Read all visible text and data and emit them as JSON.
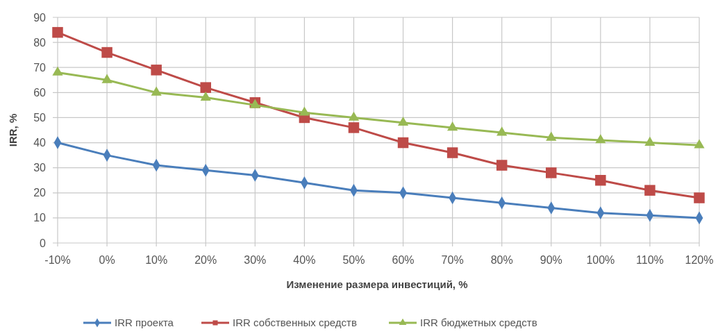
{
  "chart_data": {
    "type": "line",
    "xlabel": "Изменение размера инвестиций, %",
    "ylabel": "IRR, %",
    "categories": [
      "-10%",
      "0%",
      "10%",
      "20%",
      "30%",
      "40%",
      "50%",
      "60%",
      "70%",
      "80%",
      "90%",
      "100%",
      "110%",
      "120%"
    ],
    "series": [
      {
        "name": "IRR проекта",
        "color": "#4a7ebb",
        "marker": "diamond",
        "values": [
          40,
          35,
          31,
          29,
          27,
          24,
          21,
          20,
          18,
          16,
          14,
          12,
          11,
          10
        ]
      },
      {
        "name": "IRR собственных средств",
        "color": "#be4b48",
        "marker": "square",
        "values": [
          84,
          76,
          69,
          62,
          56,
          50,
          46,
          40,
          36,
          31,
          28,
          25,
          21,
          18
        ]
      },
      {
        "name": "IRR бюджетных средств",
        "color": "#98b954",
        "marker": "triangle",
        "values": [
          68,
          65,
          60,
          58,
          55,
          52,
          50,
          48,
          46,
          44,
          42,
          41,
          40,
          39
        ]
      }
    ],
    "ylim": [
      0,
      90
    ],
    "yticks": [
      0,
      10,
      20,
      30,
      40,
      50,
      60,
      70,
      80,
      90
    ],
    "grid": true,
    "legend": "bottom",
    "line_style": "solid"
  }
}
